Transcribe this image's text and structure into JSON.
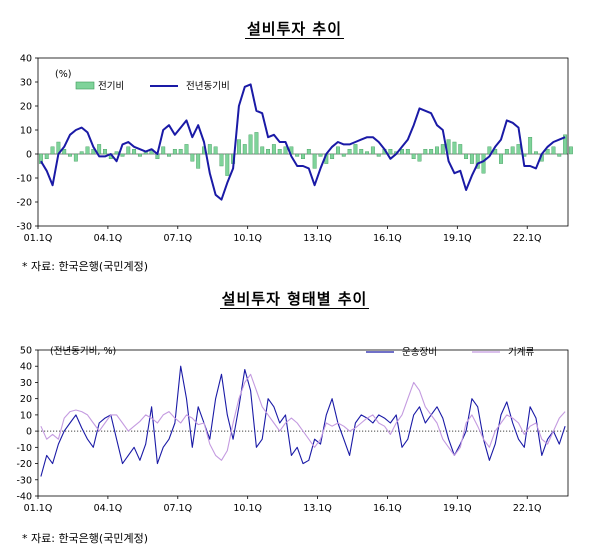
{
  "chart_data": [
    {
      "type": "bar+line",
      "title": "설비투자 추이",
      "unit_label": "(%)",
      "ylim": [
        -30,
        40
      ],
      "yticks": [
        -30,
        -20,
        -10,
        0,
        10,
        20,
        30,
        40
      ],
      "xticks": [
        "01.1Q",
        "04.1Q",
        "07.1Q",
        "10.1Q",
        "13.1Q",
        "16.1Q",
        "19.1Q",
        "22.1Q"
      ],
      "x_start_year": 2001,
      "n_quarters": 91,
      "legend": [
        {
          "name": "전기비",
          "type": "bar",
          "color": "#7fd39a"
        },
        {
          "name": "전년동기비",
          "type": "line",
          "color": "#1a1aa6"
        }
      ],
      "series": [
        {
          "name": "전기비",
          "type": "bar",
          "color": "#7fd39a",
          "values": [
            -4,
            -2,
            3,
            5,
            2,
            -1,
            -3,
            1,
            3,
            2,
            4,
            2,
            -2,
            1,
            -1,
            3,
            2,
            -1,
            1,
            2,
            -2,
            3,
            -1,
            2,
            2,
            4,
            -3,
            -6,
            3,
            4,
            3,
            -5,
            -9,
            -4,
            6,
            4,
            8,
            9,
            3,
            2,
            4,
            2,
            3,
            3,
            -1,
            -2,
            2,
            -6,
            -1,
            -4,
            -2,
            3,
            -1,
            2,
            4,
            2,
            1,
            3,
            -1,
            2,
            2,
            1,
            2,
            2,
            -2,
            -3,
            2,
            2,
            3,
            4,
            6,
            5,
            4,
            -2,
            -4,
            -6,
            -8,
            3,
            2,
            -4,
            2,
            3,
            4,
            -1,
            7,
            1,
            -3,
            2,
            3,
            -1,
            8,
            3
          ]
        },
        {
          "name": "전년동기비",
          "type": "line",
          "color": "#1a1aa6",
          "values": [
            -3,
            -7,
            -13,
            0,
            3,
            8,
            10,
            11,
            9,
            3,
            -1,
            -1,
            0,
            -3,
            4,
            5,
            3,
            2,
            1,
            2,
            0,
            10,
            12,
            8,
            11,
            14,
            7,
            12,
            5,
            -8,
            -17,
            -19,
            -12,
            -6,
            20,
            28,
            29,
            18,
            17,
            7,
            8,
            5,
            5,
            -1,
            -5,
            -5,
            -6,
            -13,
            -6,
            0,
            3,
            5,
            4,
            4,
            5,
            6,
            7,
            7,
            5,
            2,
            -2,
            0,
            3,
            6,
            12,
            19,
            18,
            17,
            12,
            10,
            -3,
            -8,
            -7,
            -15,
            -9,
            -4,
            -3,
            -1,
            3,
            6,
            14,
            13,
            11,
            -5,
            -5,
            -6,
            0,
            3,
            5,
            6,
            7
          ]
        }
      ],
      "source_note": "* 자료: 한국은행(국민계정)"
    },
    {
      "type": "line",
      "title": "설비투자 형태별 추이",
      "unit_label": "(전년동기비, %)",
      "ylim": [
        -40,
        50
      ],
      "yticks": [
        -40,
        -30,
        -20,
        -10,
        0,
        10,
        20,
        30,
        40,
        50
      ],
      "xticks": [
        "01.1Q",
        "04.1Q",
        "07.1Q",
        "10.1Q",
        "13.1Q",
        "16.1Q",
        "19.1Q",
        "22.1Q"
      ],
      "x_start_year": 2001,
      "n_quarters": 91,
      "legend": [
        {
          "name": "운송장비",
          "type": "line",
          "color": "#1a1aa6"
        },
        {
          "name": "기계류",
          "type": "line",
          "color": "#c49be0"
        }
      ],
      "series": [
        {
          "name": "운송장비",
          "type": "line",
          "color": "#1a1aa6",
          "values": [
            -28,
            -15,
            -20,
            -8,
            0,
            5,
            10,
            2,
            -5,
            -10,
            5,
            8,
            10,
            -5,
            -20,
            -15,
            -10,
            -18,
            -8,
            15,
            -20,
            -10,
            -5,
            5,
            40,
            20,
            -10,
            15,
            5,
            -5,
            20,
            35,
            10,
            -5,
            15,
            38,
            25,
            -10,
            -5,
            20,
            15,
            5,
            10,
            -15,
            -10,
            -20,
            -18,
            -5,
            -8,
            10,
            20,
            5,
            -5,
            -15,
            5,
            10,
            8,
            5,
            10,
            8,
            5,
            10,
            -10,
            -5,
            10,
            15,
            5,
            10,
            15,
            8,
            -5,
            -15,
            -8,
            0,
            20,
            15,
            -5,
            -18,
            -8,
            10,
            18,
            5,
            -5,
            -10,
            15,
            8,
            -15,
            -5,
            0,
            -8,
            3
          ]
        },
        {
          "name": "기계류",
          "type": "line",
          "color": "#c49be0",
          "values": [
            3,
            -5,
            -2,
            -5,
            8,
            12,
            13,
            12,
            10,
            5,
            0,
            5,
            10,
            10,
            5,
            0,
            3,
            6,
            10,
            8,
            5,
            10,
            12,
            8,
            5,
            10,
            8,
            4,
            5,
            -8,
            -15,
            -18,
            -12,
            5,
            20,
            30,
            35,
            25,
            15,
            10,
            5,
            0,
            5,
            8,
            5,
            0,
            -5,
            -10,
            -5,
            5,
            3,
            5,
            3,
            0,
            2,
            5,
            8,
            10,
            5,
            3,
            -2,
            5,
            10,
            20,
            30,
            25,
            15,
            10,
            5,
            -5,
            -10,
            -15,
            -10,
            5,
            10,
            3,
            -5,
            -10,
            0,
            5,
            10,
            8,
            5,
            -2,
            3,
            5,
            -5,
            -8,
            0,
            8,
            12
          ]
        }
      ],
      "source_note": "* 자료: 한국은행(국민계정)"
    }
  ]
}
